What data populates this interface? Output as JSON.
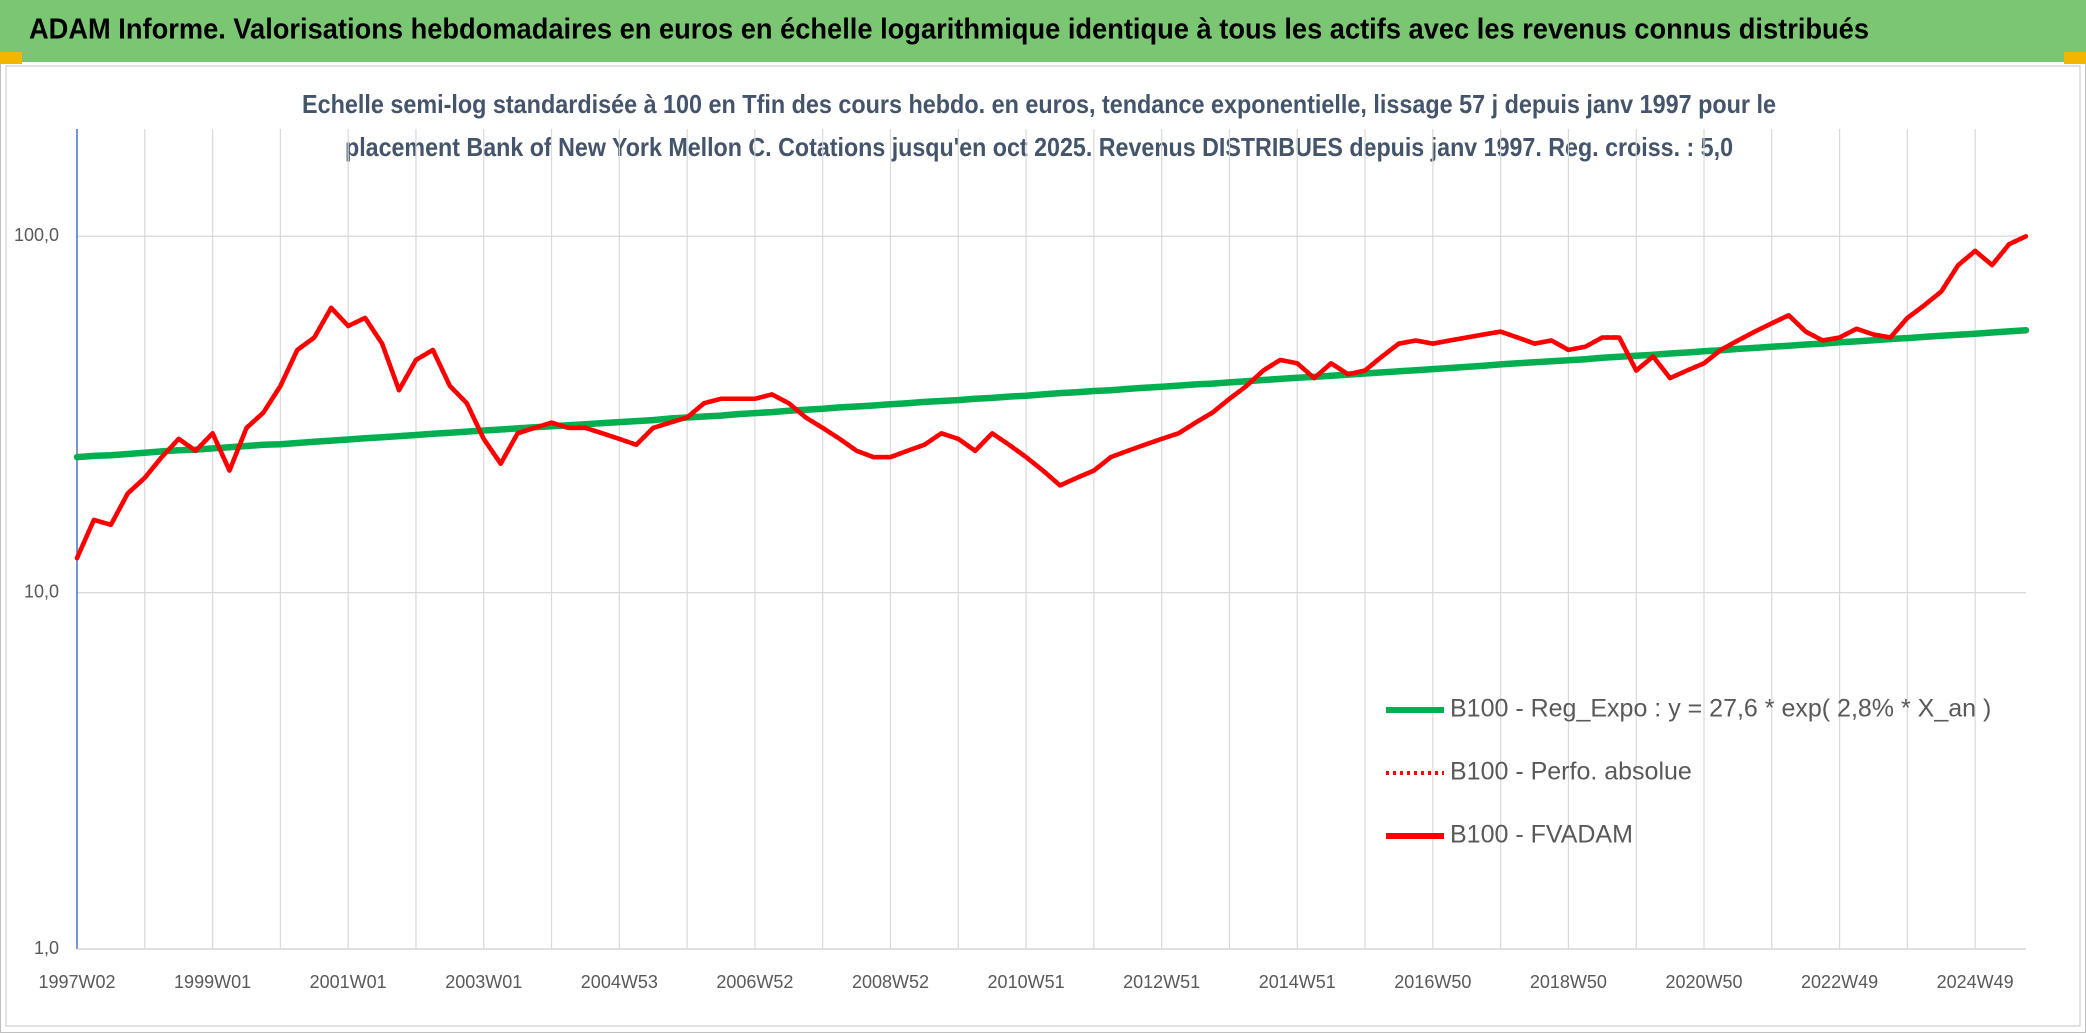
{
  "chart_data": {
    "type": "line",
    "title": "ADAM Informe. Valorisations hebdomadaires en euros en échelle logarithmique identique à tous les actifs avec les revenus connus distribués",
    "subtitle": [
      "Echelle semi-log standardisée à 100 en Tfin des cours hebdo. en euros, tendance exponentielle, lissage 57 j depuis janv 1997 pour le",
      "placement Bank of New York Mellon C. Cotations jusqu'en oct 2025. Revenus DISTRIBUES depuis janv 1997. Reg. croiss. : 5,0"
    ],
    "log_scale": true,
    "grid": true,
    "ylim": [
      1,
      200
    ],
    "yticks": [
      {
        "value": 1,
        "label": "1,0"
      },
      {
        "value": 10,
        "label": "10,0"
      },
      {
        "value": 100,
        "label": "100,0"
      }
    ],
    "categories": [
      "1997W02",
      null,
      null,
      null,
      null,
      null,
      null,
      null,
      "1999W01",
      null,
      null,
      null,
      null,
      null,
      null,
      null,
      "2001W01",
      null,
      null,
      null,
      null,
      null,
      null,
      null,
      "2003W01",
      null,
      null,
      null,
      null,
      null,
      null,
      null,
      "2004W53",
      null,
      null,
      null,
      null,
      null,
      null,
      null,
      "2006W52",
      null,
      null,
      null,
      null,
      null,
      null,
      null,
      "2008W52",
      null,
      null,
      null,
      null,
      null,
      null,
      null,
      "2010W51",
      null,
      null,
      null,
      null,
      null,
      null,
      null,
      "2012W51",
      null,
      null,
      null,
      null,
      null,
      null,
      null,
      "2014W51",
      null,
      null,
      null,
      null,
      null,
      null,
      null,
      "2016W50",
      null,
      null,
      null,
      null,
      null,
      null,
      null,
      "2018W50",
      null,
      null,
      null,
      null,
      null,
      null,
      null,
      "2020W50",
      null,
      null,
      null,
      null,
      null,
      null,
      null,
      "2022W49",
      null,
      null,
      null,
      null,
      null,
      null,
      null,
      "2024W49",
      null,
      null,
      null
    ],
    "series": [
      {
        "name": "B100 - Reg_Expo : y = 27,6 * exp( 2,8% *  X_an )",
        "color": "#00b050",
        "dash": "solid",
        "values": [
          24.0,
          24.2,
          24.3,
          24.5,
          24.7,
          24.9,
          25.1,
          25.2,
          25.4,
          25.6,
          25.8,
          26.0,
          26.1,
          26.3,
          26.5,
          26.7,
          26.9,
          27.1,
          27.3,
          27.5,
          27.7,
          27.9,
          28.1,
          28.3,
          28.5,
          28.7,
          28.9,
          29.1,
          29.3,
          29.5,
          29.7,
          29.9,
          30.1,
          30.3,
          30.5,
          30.8,
          31.0,
          31.2,
          31.4,
          31.7,
          31.9,
          32.1,
          32.4,
          32.6,
          32.8,
          33.1,
          33.3,
          33.5,
          33.8,
          34.0,
          34.3,
          34.5,
          34.7,
          35.0,
          35.2,
          35.5,
          35.7,
          36.0,
          36.3,
          36.5,
          36.8,
          37.0,
          37.3,
          37.6,
          37.8,
          38.1,
          38.4,
          38.6,
          38.9,
          39.2,
          39.5,
          39.8,
          40.1,
          40.3,
          40.6,
          40.9,
          41.2,
          41.5,
          41.8,
          42.1,
          42.4,
          42.7,
          43.0,
          43.3,
          43.7,
          44.0,
          44.3,
          44.6,
          44.9,
          45.2,
          45.6,
          45.9,
          46.2,
          46.5,
          46.9,
          47.2,
          47.6,
          47.9,
          48.3,
          48.6,
          49.0,
          49.3,
          49.7,
          50.0,
          50.4,
          50.7,
          51.1,
          51.5,
          51.8,
          52.2,
          52.6,
          52.9,
          53.3,
          53.7,
          54.1,
          54.5
        ]
      },
      {
        "name": "B100 - Perfo. absolue",
        "color": "#ff0000",
        "dash": "dotted",
        "values": [
          12.5,
          16,
          15.5,
          19,
          21,
          24,
          27,
          25,
          28,
          22,
          29,
          32,
          38,
          48,
          52,
          63,
          56,
          59,
          50,
          37,
          45,
          48,
          38,
          34,
          27,
          23,
          28,
          29,
          30,
          29,
          29,
          28,
          27,
          26,
          29,
          30,
          31,
          34,
          35,
          35,
          35,
          36,
          34,
          31,
          29,
          27,
          25,
          24,
          24,
          25,
          26,
          28,
          27,
          25,
          28,
          26,
          24,
          22,
          20,
          21,
          22,
          24,
          25,
          26,
          27,
          28,
          30,
          32,
          35,
          38,
          42,
          45,
          44,
          40,
          44,
          41,
          42,
          46,
          50,
          51,
          50,
          51,
          52,
          53,
          54,
          52,
          50,
          51,
          48,
          49,
          52,
          52,
          42,
          46,
          40,
          42,
          44,
          48,
          51,
          54,
          57,
          60,
          54,
          51,
          52,
          55,
          53,
          52,
          59,
          64,
          70,
          83,
          91,
          83,
          95,
          100
        ]
      },
      {
        "name": "B100 - FVADAM",
        "color": "#ff0000",
        "dash": "solid",
        "values": [
          12.5,
          16,
          15.5,
          19,
          21,
          24,
          27,
          25,
          28,
          22,
          29,
          32,
          38,
          48,
          52,
          63,
          56,
          59,
          50,
          37,
          45,
          48,
          38,
          34,
          27,
          23,
          28,
          29,
          30,
          29,
          29,
          28,
          27,
          26,
          29,
          30,
          31,
          34,
          35,
          35,
          35,
          36,
          34,
          31,
          29,
          27,
          25,
          24,
          24,
          25,
          26,
          28,
          27,
          25,
          28,
          26,
          24,
          22,
          20,
          21,
          22,
          24,
          25,
          26,
          27,
          28,
          30,
          32,
          35,
          38,
          42,
          45,
          44,
          40,
          44,
          41,
          42,
          46,
          50,
          51,
          50,
          51,
          52,
          53,
          54,
          52,
          50,
          51,
          48,
          49,
          52,
          52,
          42,
          46,
          40,
          42,
          44,
          48,
          51,
          54,
          57,
          60,
          54,
          51,
          52,
          55,
          53,
          52,
          59,
          64,
          70,
          83,
          91,
          83,
          95,
          100
        ]
      }
    ]
  }
}
